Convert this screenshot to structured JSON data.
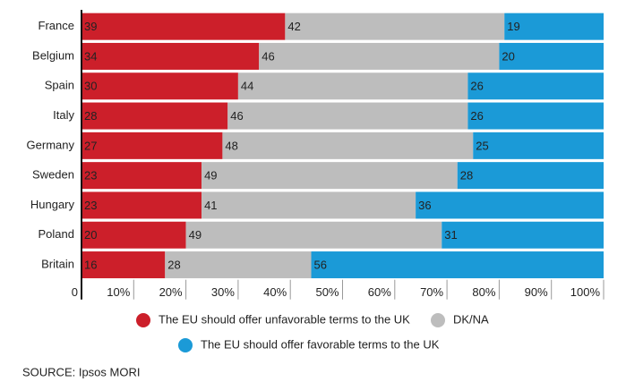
{
  "chart_data": {
    "type": "stacked-bar-horizontal",
    "categories": [
      "France",
      "Belgium",
      "Spain",
      "Italy",
      "Germany",
      "Sweden",
      "Hungary",
      "Poland",
      "Britain"
    ],
    "series": [
      {
        "name": "The EU should offer unfavorable terms to the UK",
        "color": "#cc1f2a",
        "label_color": "#ffffff",
        "values": [
          39,
          34,
          30,
          28,
          27,
          23,
          23,
          20,
          16
        ]
      },
      {
        "name": "DK/NA",
        "color": "#bdbdbd",
        "label_color": "#222222",
        "values": [
          42,
          46,
          44,
          46,
          48,
          49,
          41,
          49,
          28
        ]
      },
      {
        "name": "The EU should offer favorable terms to the UK",
        "color": "#1b9ad7",
        "label_color": "#ffffff",
        "values": [
          19,
          20,
          26,
          26,
          25,
          28,
          36,
          31,
          56
        ]
      }
    ],
    "xlim": [
      0,
      100
    ],
    "xticks": [
      0,
      {
        "value": 10,
        "label": "10%"
      },
      {
        "value": 20,
        "label": "20%"
      },
      {
        "value": 30,
        "label": "30%"
      },
      {
        "value": 40,
        "label": "40%"
      },
      {
        "value": 50,
        "label": "50%"
      },
      {
        "value": 60,
        "label": "60%"
      },
      {
        "value": 70,
        "label": "70%"
      },
      {
        "value": 80,
        "label": "80%"
      },
      {
        "value": 90,
        "label": "90%"
      },
      {
        "value": 100,
        "label": "100%"
      }
    ],
    "source": "SOURCE: Ipsos MORI"
  }
}
